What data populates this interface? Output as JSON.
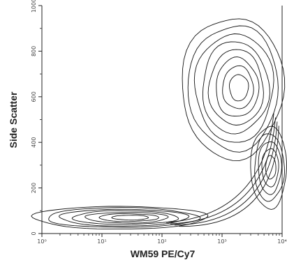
{
  "chart_data": {
    "type": "contour",
    "title": "",
    "xlabel": "WM59 PE/Cy7",
    "ylabel": "Side Scatter",
    "x_scale": "log",
    "xlim": [
      1,
      10000
    ],
    "ylim": [
      0,
      1000
    ],
    "x_ticks": [
      "10⁰",
      "10¹",
      "10²",
      "10³",
      "10⁴"
    ],
    "y_ticks": [
      "0",
      "200",
      "400",
      "600",
      "800",
      "1000"
    ],
    "grid": false,
    "legend": "none",
    "line_color": "#111111",
    "populations": [
      {
        "shape": "ellipse",
        "center": {
          "x": 20,
          "y": 70
        },
        "log10_x_halfwidth": 1.45,
        "y_halfheight": 50,
        "levels": 7
      },
      {
        "shape": "ellipse",
        "center": {
          "x": 1500,
          "y": 640
        },
        "log10_x_halfwidth": 0.85,
        "y_halfheight": 310,
        "levels": 8
      },
      {
        "shape": "ellipse",
        "center": {
          "x": 6000,
          "y": 290
        },
        "log10_x_halfwidth": 0.3,
        "y_halfheight": 180,
        "levels": 5
      },
      {
        "shape": "band",
        "from": {
          "x": 150,
          "y": 40
        },
        "to": {
          "x": 8000,
          "y": 500
        },
        "levels": 4
      }
    ]
  }
}
